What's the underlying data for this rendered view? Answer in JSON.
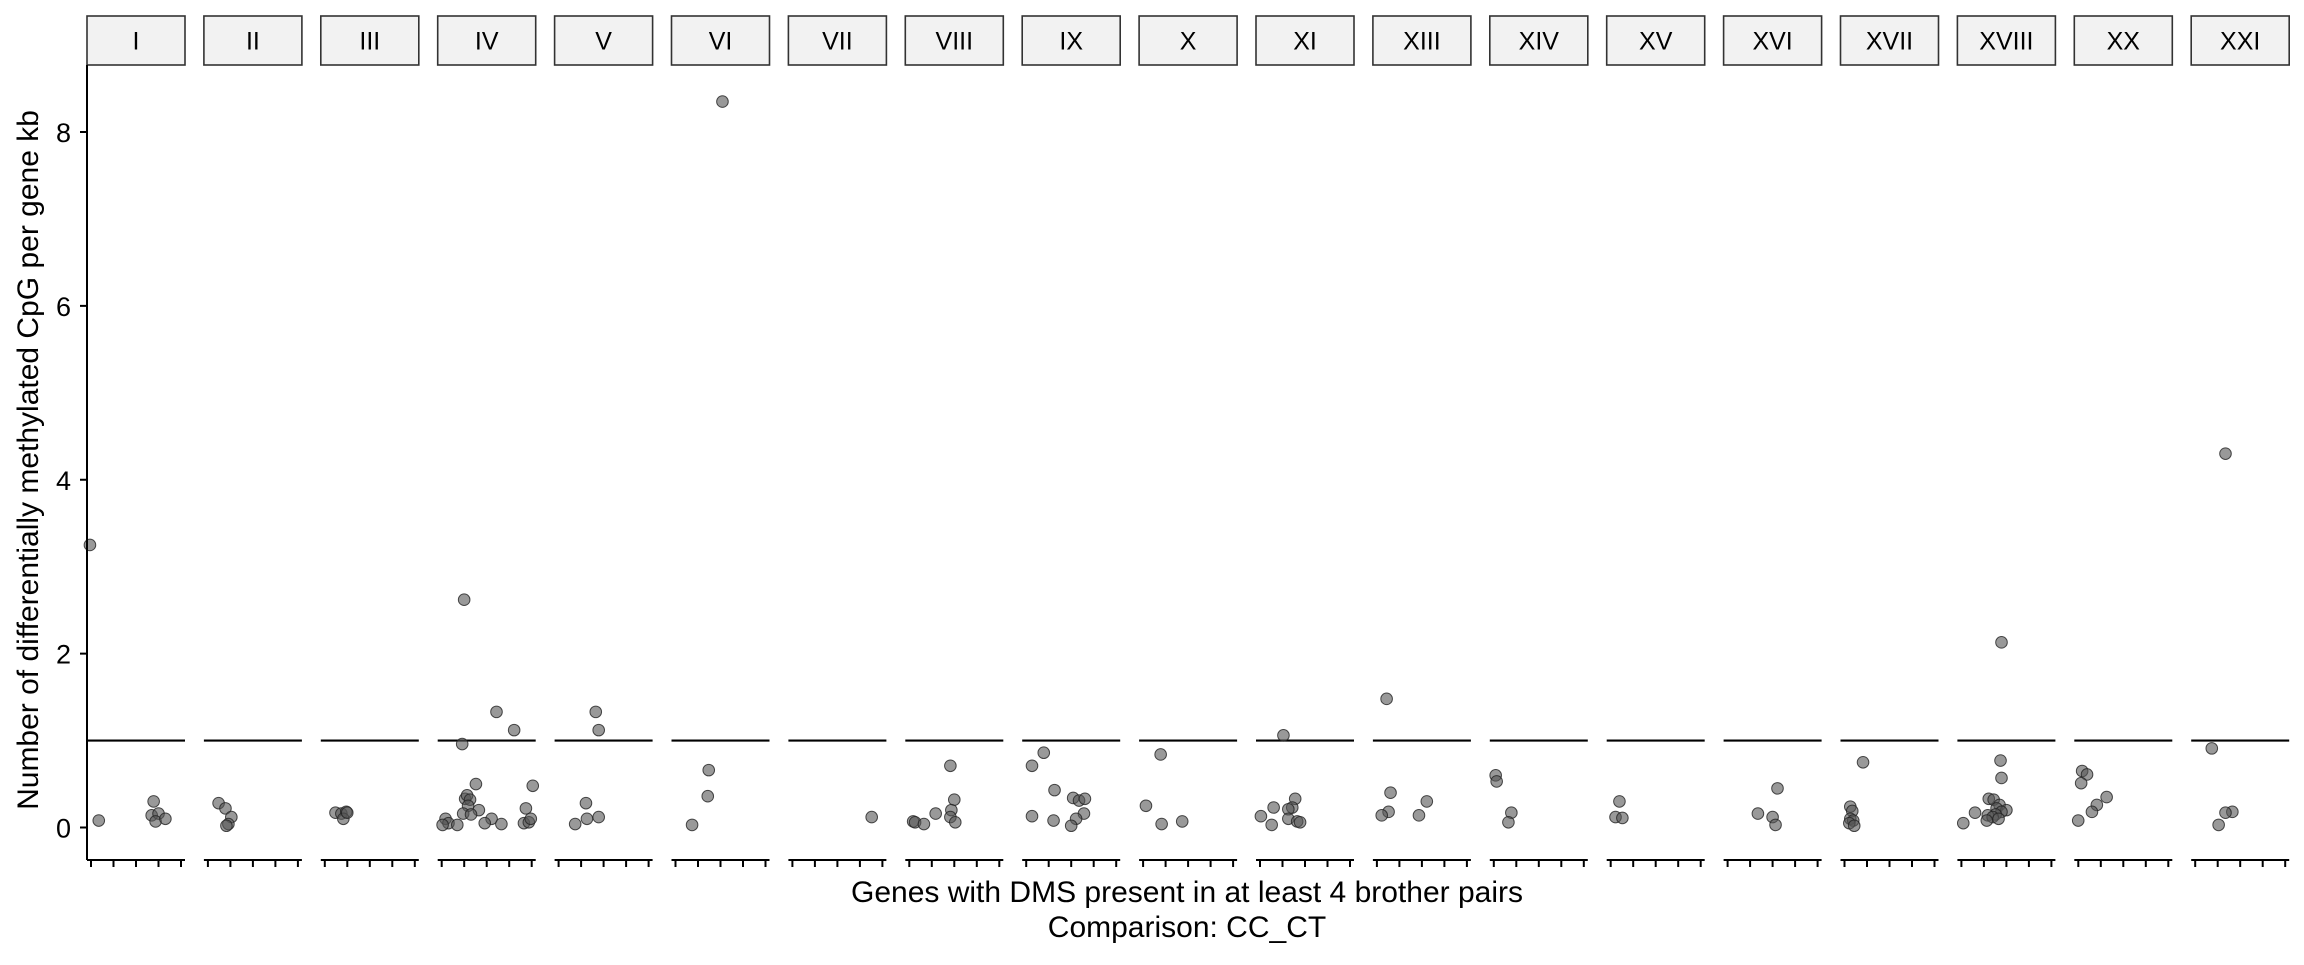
{
  "chart_data": {
    "type": "scatter",
    "facets": [
      "I",
      "II",
      "III",
      "IV",
      "V",
      "VI",
      "VII",
      "VIII",
      "IX",
      "X",
      "XI",
      "XIII",
      "XIV",
      "XV",
      "XVI",
      "XVII",
      "XVIII",
      "XX",
      "XXI"
    ],
    "xlabel": "Genes with DMS present in at least 4 brother pairs",
    "xlabel_line2": "Comparison: CC_CT",
    "ylabel": "Number of differentially methylated CpG per gene kb",
    "ylim": [
      -0.4,
      8.8
    ],
    "yticks": [
      0,
      2,
      4,
      6,
      8
    ],
    "reference_line_y": 1,
    "grid": false,
    "legend": "none",
    "point_color": "#555555",
    "point_opacity": 0.6,
    "x_position_range": [
      0,
      1
    ],
    "panels": [
      {
        "facet": "I",
        "points": [
          [
            0.03,
            3.25
          ],
          [
            0.12,
            0.08
          ],
          [
            0.68,
            0.3
          ],
          [
            0.66,
            0.14
          ],
          [
            0.73,
            0.16
          ],
          [
            0.7,
            0.07
          ],
          [
            0.8,
            0.1
          ]
        ]
      },
      {
        "facet": "II",
        "points": [
          [
            0.15,
            0.28
          ],
          [
            0.22,
            0.22
          ],
          [
            0.28,
            0.12
          ],
          [
            0.25,
            0.04
          ],
          [
            0.23,
            0.02
          ]
        ]
      },
      {
        "facet": "III",
        "points": [
          [
            0.15,
            0.17
          ],
          [
            0.21,
            0.16
          ],
          [
            0.26,
            0.18
          ],
          [
            0.23,
            0.1
          ],
          [
            0.27,
            0.17
          ]
        ]
      },
      {
        "facet": "IV",
        "points": [
          [
            0.27,
            2.62
          ],
          [
            0.25,
            0.96
          ],
          [
            0.6,
            1.33
          ],
          [
            0.78,
            1.12
          ],
          [
            0.39,
            0.5
          ],
          [
            0.97,
            0.48
          ],
          [
            0.28,
            0.33
          ],
          [
            0.3,
            0.37
          ],
          [
            0.33,
            0.32
          ],
          [
            0.31,
            0.25
          ],
          [
            0.26,
            0.16
          ],
          [
            0.42,
            0.2
          ],
          [
            0.9,
            0.22
          ],
          [
            0.34,
            0.15
          ],
          [
            0.55,
            0.1
          ],
          [
            0.08,
            0.1
          ],
          [
            0.11,
            0.05
          ],
          [
            0.2,
            0.03
          ],
          [
            0.05,
            0.03
          ],
          [
            0.48,
            0.05
          ],
          [
            0.65,
            0.04
          ],
          [
            0.88,
            0.05
          ],
          [
            0.93,
            0.06
          ],
          [
            0.95,
            0.1
          ]
        ]
      },
      {
        "facet": "V",
        "points": [
          [
            0.42,
            1.33
          ],
          [
            0.45,
            1.12
          ],
          [
            0.32,
            0.28
          ],
          [
            0.45,
            0.12
          ],
          [
            0.33,
            0.1
          ],
          [
            0.21,
            0.04
          ]
        ]
      },
      {
        "facet": "VI",
        "points": [
          [
            0.52,
            8.35
          ],
          [
            0.38,
            0.66
          ],
          [
            0.37,
            0.36
          ],
          [
            0.21,
            0.03
          ]
        ]
      },
      {
        "facet": "VII",
        "points": [
          [
            0.85,
            0.12
          ]
        ]
      },
      {
        "facet": "VIII",
        "points": [
          [
            0.46,
            0.71
          ],
          [
            0.5,
            0.32
          ],
          [
            0.47,
            0.2
          ],
          [
            0.46,
            0.12
          ],
          [
            0.31,
            0.16
          ],
          [
            0.08,
            0.07
          ],
          [
            0.1,
            0.06
          ],
          [
            0.19,
            0.04
          ],
          [
            0.51,
            0.06
          ]
        ]
      },
      {
        "facet": "IX",
        "points": [
          [
            0.22,
            0.86
          ],
          [
            0.1,
            0.71
          ],
          [
            0.33,
            0.43
          ],
          [
            0.52,
            0.34
          ],
          [
            0.58,
            0.31
          ],
          [
            0.64,
            0.33
          ],
          [
            0.1,
            0.13
          ],
          [
            0.63,
            0.16
          ],
          [
            0.32,
            0.08
          ],
          [
            0.55,
            0.1
          ],
          [
            0.5,
            0.02
          ]
        ]
      },
      {
        "facet": "X",
        "points": [
          [
            0.22,
            0.84
          ],
          [
            0.07,
            0.25
          ],
          [
            0.23,
            0.04
          ],
          [
            0.44,
            0.07
          ]
        ]
      },
      {
        "facet": "XI",
        "points": [
          [
            0.28,
            1.06
          ],
          [
            0.4,
            0.33
          ],
          [
            0.18,
            0.23
          ],
          [
            0.37,
            0.23
          ],
          [
            0.33,
            0.21
          ],
          [
            0.05,
            0.13
          ],
          [
            0.33,
            0.1
          ],
          [
            0.42,
            0.07
          ],
          [
            0.45,
            0.06
          ],
          [
            0.16,
            0.03
          ]
        ]
      },
      {
        "facet": "XIII",
        "points": [
          [
            0.14,
            1.48
          ],
          [
            0.18,
            0.4
          ],
          [
            0.55,
            0.3
          ],
          [
            0.16,
            0.18
          ],
          [
            0.09,
            0.14
          ],
          [
            0.47,
            0.14
          ]
        ]
      },
      {
        "facet": "XIV",
        "points": [
          [
            0.06,
            0.6
          ],
          [
            0.07,
            0.53
          ],
          [
            0.22,
            0.17
          ],
          [
            0.19,
            0.06
          ]
        ]
      },
      {
        "facet": "XV",
        "points": [
          [
            0.13,
            0.3
          ],
          [
            0.09,
            0.12
          ],
          [
            0.16,
            0.11
          ]
        ]
      },
      {
        "facet": "XVI",
        "points": [
          [
            0.55,
            0.45
          ],
          [
            0.35,
            0.16
          ],
          [
            0.5,
            0.12
          ],
          [
            0.53,
            0.03
          ]
        ]
      },
      {
        "facet": "XVII",
        "points": [
          [
            0.23,
            0.75
          ],
          [
            0.1,
            0.24
          ],
          [
            0.12,
            0.19
          ],
          [
            0.1,
            0.1
          ],
          [
            0.13,
            0.08
          ],
          [
            0.09,
            0.05
          ],
          [
            0.14,
            0.02
          ]
        ]
      },
      {
        "facet": "XVIII",
        "points": [
          [
            0.45,
            2.13
          ],
          [
            0.44,
            0.77
          ],
          [
            0.45,
            0.57
          ],
          [
            0.32,
            0.33
          ],
          [
            0.37,
            0.32
          ],
          [
            0.43,
            0.26
          ],
          [
            0.4,
            0.22
          ],
          [
            0.5,
            0.2
          ],
          [
            0.45,
            0.18
          ],
          [
            0.39,
            0.15
          ],
          [
            0.18,
            0.17
          ],
          [
            0.31,
            0.14
          ],
          [
            0.36,
            0.12
          ],
          [
            0.42,
            0.1
          ],
          [
            0.3,
            0.08
          ],
          [
            0.06,
            0.05
          ]
        ]
      },
      {
        "facet": "XX",
        "points": [
          [
            0.08,
            0.65
          ],
          [
            0.13,
            0.61
          ],
          [
            0.07,
            0.51
          ],
          [
            0.33,
            0.35
          ],
          [
            0.23,
            0.26
          ],
          [
            0.18,
            0.18
          ],
          [
            0.04,
            0.08
          ]
        ]
      },
      {
        "facet": "XXI",
        "points": [
          [
            0.35,
            4.3
          ],
          [
            0.21,
            0.91
          ],
          [
            0.42,
            0.18
          ],
          [
            0.35,
            0.17
          ],
          [
            0.28,
            0.03
          ]
        ]
      }
    ]
  }
}
